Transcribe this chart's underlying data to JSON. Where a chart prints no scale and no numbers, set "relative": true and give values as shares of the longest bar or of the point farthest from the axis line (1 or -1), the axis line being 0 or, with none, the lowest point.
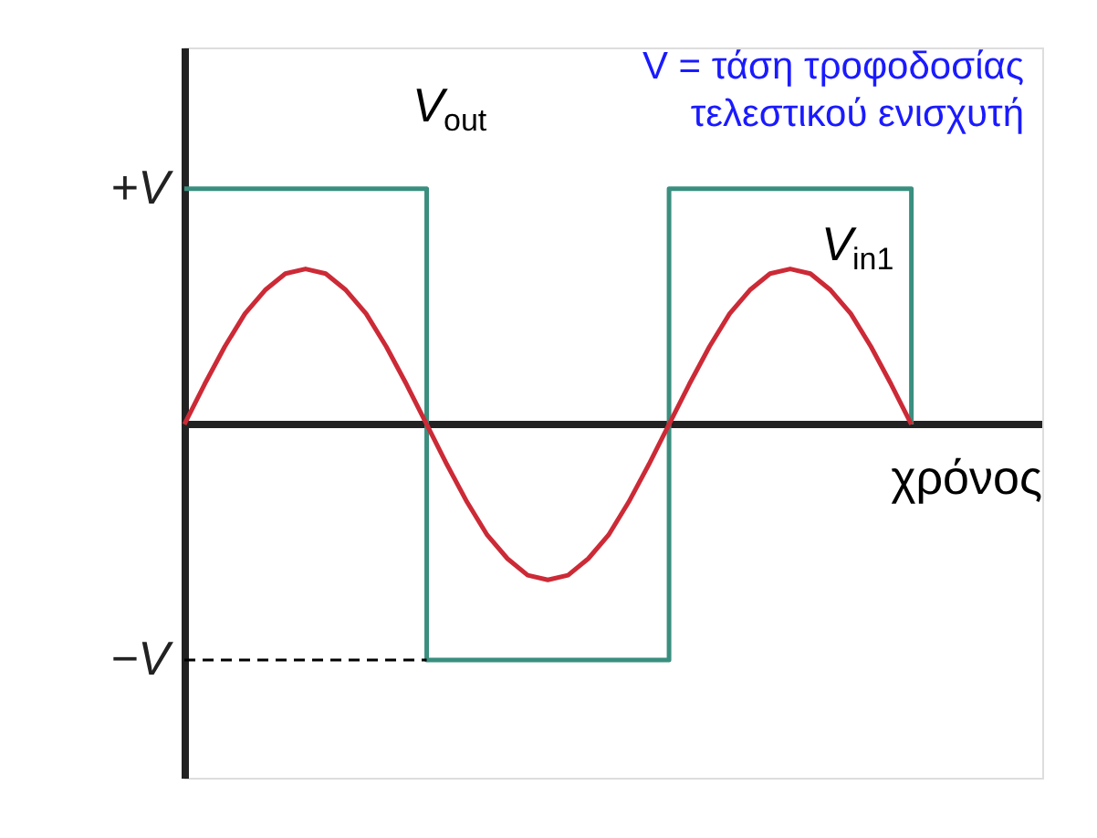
{
  "chart_data": {
    "type": "line",
    "xlabel": "χρόνος",
    "categories": [
      null,
      null,
      null,
      null,
      null,
      null,
      null,
      null,
      null,
      null,
      null,
      null,
      null,
      null,
      null,
      null,
      null,
      null,
      null,
      null,
      null,
      null,
      null,
      null,
      null,
      null,
      null,
      null,
      null,
      null,
      null,
      null,
      null,
      null,
      null,
      null,
      null
    ],
    "series": [
      {
        "name": "V$_{out}$",
        "type": "step",
        "color": "#3a8f7f",
        "values": [
          1,
          1,
          1,
          1,
          1,
          1,
          1,
          1,
          1,
          1,
          1,
          1,
          -1,
          -1,
          -1,
          -1,
          -1,
          -1,
          -1,
          -1,
          -1,
          -1,
          -1,
          -1,
          1,
          1,
          1,
          1,
          1,
          1,
          1,
          1,
          1,
          1,
          1,
          1,
          0
        ]
      },
      {
        "name": "V$_{in1}$",
        "type": "line",
        "color": "#cc2a36",
        "values": [
          0,
          0.17,
          0.33,
          0.47,
          0.57,
          0.64,
          0.66,
          0.64,
          0.57,
          0.47,
          0.33,
          0.17,
          0,
          -0.17,
          -0.33,
          -0.47,
          -0.57,
          -0.64,
          -0.66,
          -0.64,
          -0.57,
          -0.47,
          -0.33,
          -0.17,
          0,
          0.17,
          0.33,
          0.47,
          0.57,
          0.64,
          0.66,
          0.64,
          0.57,
          0.47,
          0.33,
          0.17,
          0
        ]
      }
    ],
    "relative": true,
    "ref_lines": [
      {
        "axis": "y",
        "value": -1,
        "label": "−V",
        "line_style": "dashed",
        "color": "#000000"
      }
    ],
    "annotations": [
      "V = τάση τροφοδοσίας τελεστικού ενισχυτή",
      "+V"
    ],
    "legend": false,
    "marker": "none"
  }
}
